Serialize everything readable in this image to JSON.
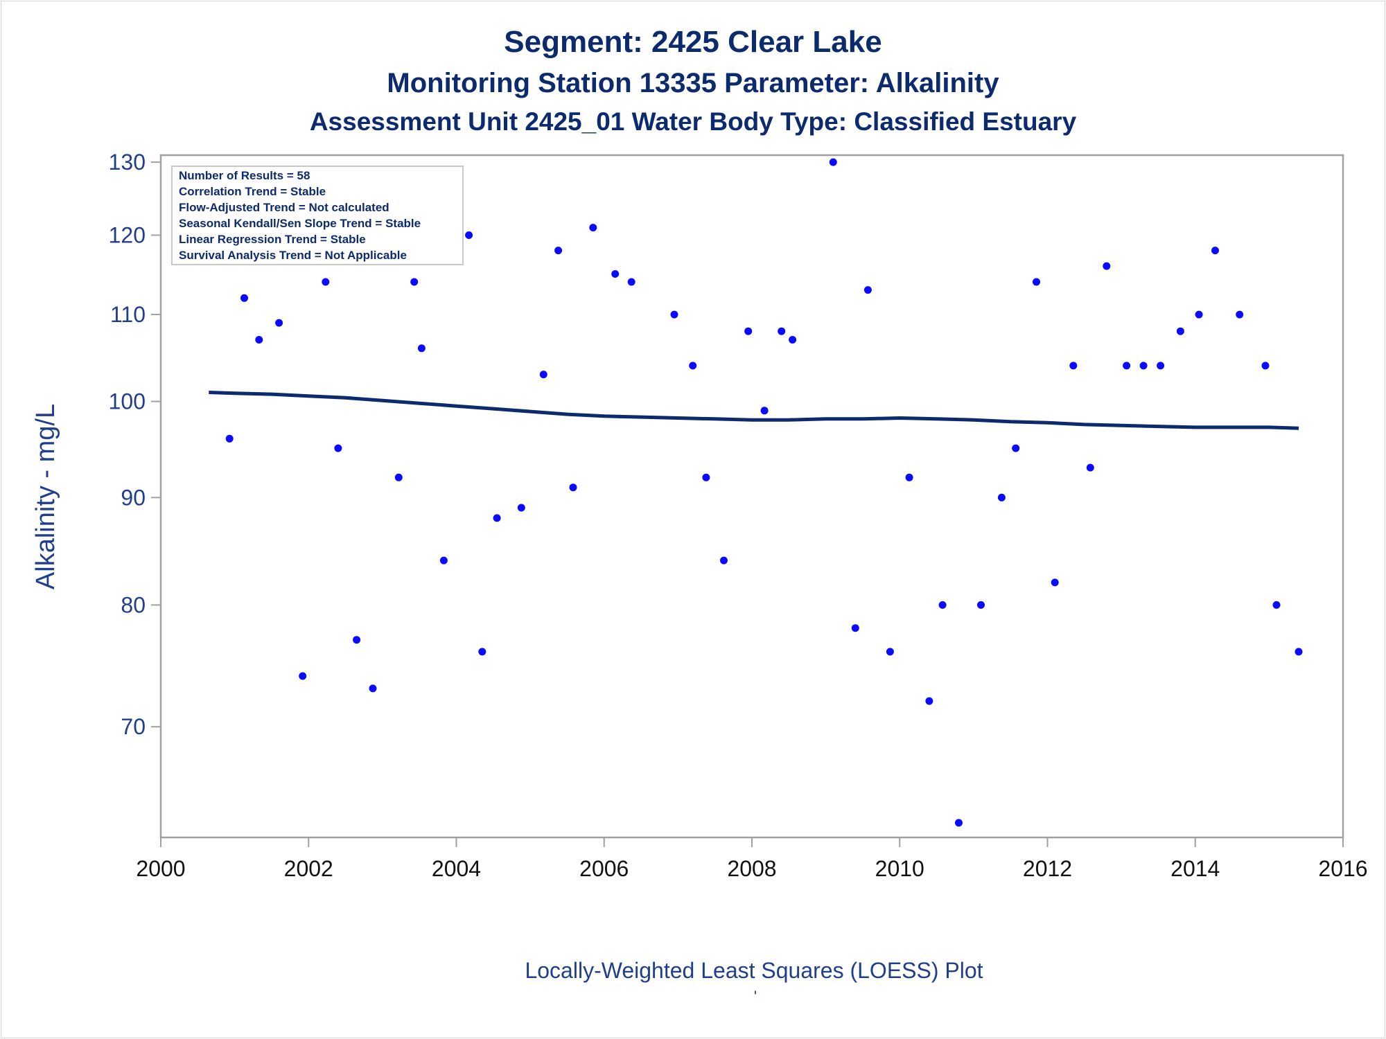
{
  "titles": {
    "line1": "Segment: 2425  Clear Lake",
    "line2": "Monitoring Station 13335 Parameter: Alkalinity",
    "line3": "Assessment Unit 2425_01   Water Body Type: Classified Estuary"
  },
  "stats_box": [
    "Number of Results = 58",
    "Correlation Trend = Stable",
    "Flow-Adjusted Trend = Not calculated",
    "Seasonal Kendall/Sen Slope Trend = Stable",
    "Linear Regression Trend = Stable",
    "Survival Analysis Trend = Not Applicable"
  ],
  "footnote_mark": "'",
  "colors": {
    "title": "#0c2a6e",
    "axis_text_y": "#1f3f8c",
    "axis_text_x": "#111111",
    "points": "#0a0aff",
    "loess": "#0c2a6e",
    "frame": "#a0a0a0"
  },
  "chart_data": {
    "type": "scatter",
    "title": "",
    "xlabel": "Locally-Weighted Least Squares (LOESS) Plot",
    "ylabel": "Alkalinity - mg/L",
    "y_scale": "log",
    "xlim": [
      2000,
      2016
    ],
    "ylim": [
      62,
      131
    ],
    "xticks": [
      2000,
      2002,
      2004,
      2006,
      2008,
      2010,
      2012,
      2014,
      2016
    ],
    "yticks": [
      70,
      80,
      90,
      100,
      110,
      120,
      130
    ],
    "grid": false,
    "series": [
      {
        "kind": "points",
        "x": [
          2000.65,
          2000.93,
          2001.13,
          2001.33,
          2001.6,
          2001.92,
          2002.23,
          2002.4,
          2002.65,
          2002.87,
          2003.22,
          2003.43,
          2003.53,
          2003.83,
          2004.17,
          2004.35,
          2004.55,
          2004.88,
          2005.18,
          2005.38,
          2005.58,
          2005.85,
          2006.15,
          2006.37,
          2006.95,
          2007.2,
          2007.38,
          2007.62,
          2007.95,
          2008.17,
          2008.4,
          2008.55,
          2009.1,
          2009.4,
          2009.57,
          2009.87,
          2010.13,
          2010.4,
          2010.58,
          2010.8,
          2011.1,
          2011.38,
          2011.57,
          2011.85,
          2012.1,
          2012.35,
          2012.58,
          2012.8,
          2013.07,
          2013.3,
          2013.53,
          2013.8,
          2014.05,
          2014.27,
          2014.6,
          2014.95,
          2015.1,
          2015.4
        ],
        "y": [
          119,
          96,
          112,
          107,
          109,
          74,
          114,
          95,
          77,
          73,
          92,
          114,
          106,
          84,
          120,
          76,
          88,
          89,
          103,
          118,
          91,
          121,
          115,
          114,
          110,
          104,
          92,
          84,
          108,
          99,
          108,
          107,
          130,
          78,
          113,
          76,
          92,
          72,
          80,
          63,
          80,
          90,
          95,
          114,
          82,
          104,
          93,
          116,
          104,
          104,
          104,
          108,
          110,
          118,
          110,
          104,
          80,
          76
        ]
      },
      {
        "kind": "loess",
        "x": [
          2000.65,
          2001,
          2001.5,
          2002,
          2002.5,
          2003,
          2003.5,
          2004,
          2004.5,
          2005,
          2005.5,
          2006,
          2006.5,
          2007,
          2007.5,
          2008,
          2008.5,
          2009,
          2009.5,
          2010,
          2010.5,
          2011,
          2011.5,
          2012,
          2012.5,
          2013,
          2013.5,
          2014,
          2014.5,
          2015,
          2015.4
        ],
        "y": [
          101.0,
          100.9,
          100.8,
          100.6,
          100.4,
          100.1,
          99.8,
          99.5,
          99.2,
          98.9,
          98.6,
          98.4,
          98.3,
          98.2,
          98.1,
          98.0,
          98.0,
          98.1,
          98.1,
          98.2,
          98.1,
          98.0,
          97.8,
          97.7,
          97.5,
          97.4,
          97.3,
          97.2,
          97.2,
          97.2,
          97.1
        ]
      }
    ]
  }
}
